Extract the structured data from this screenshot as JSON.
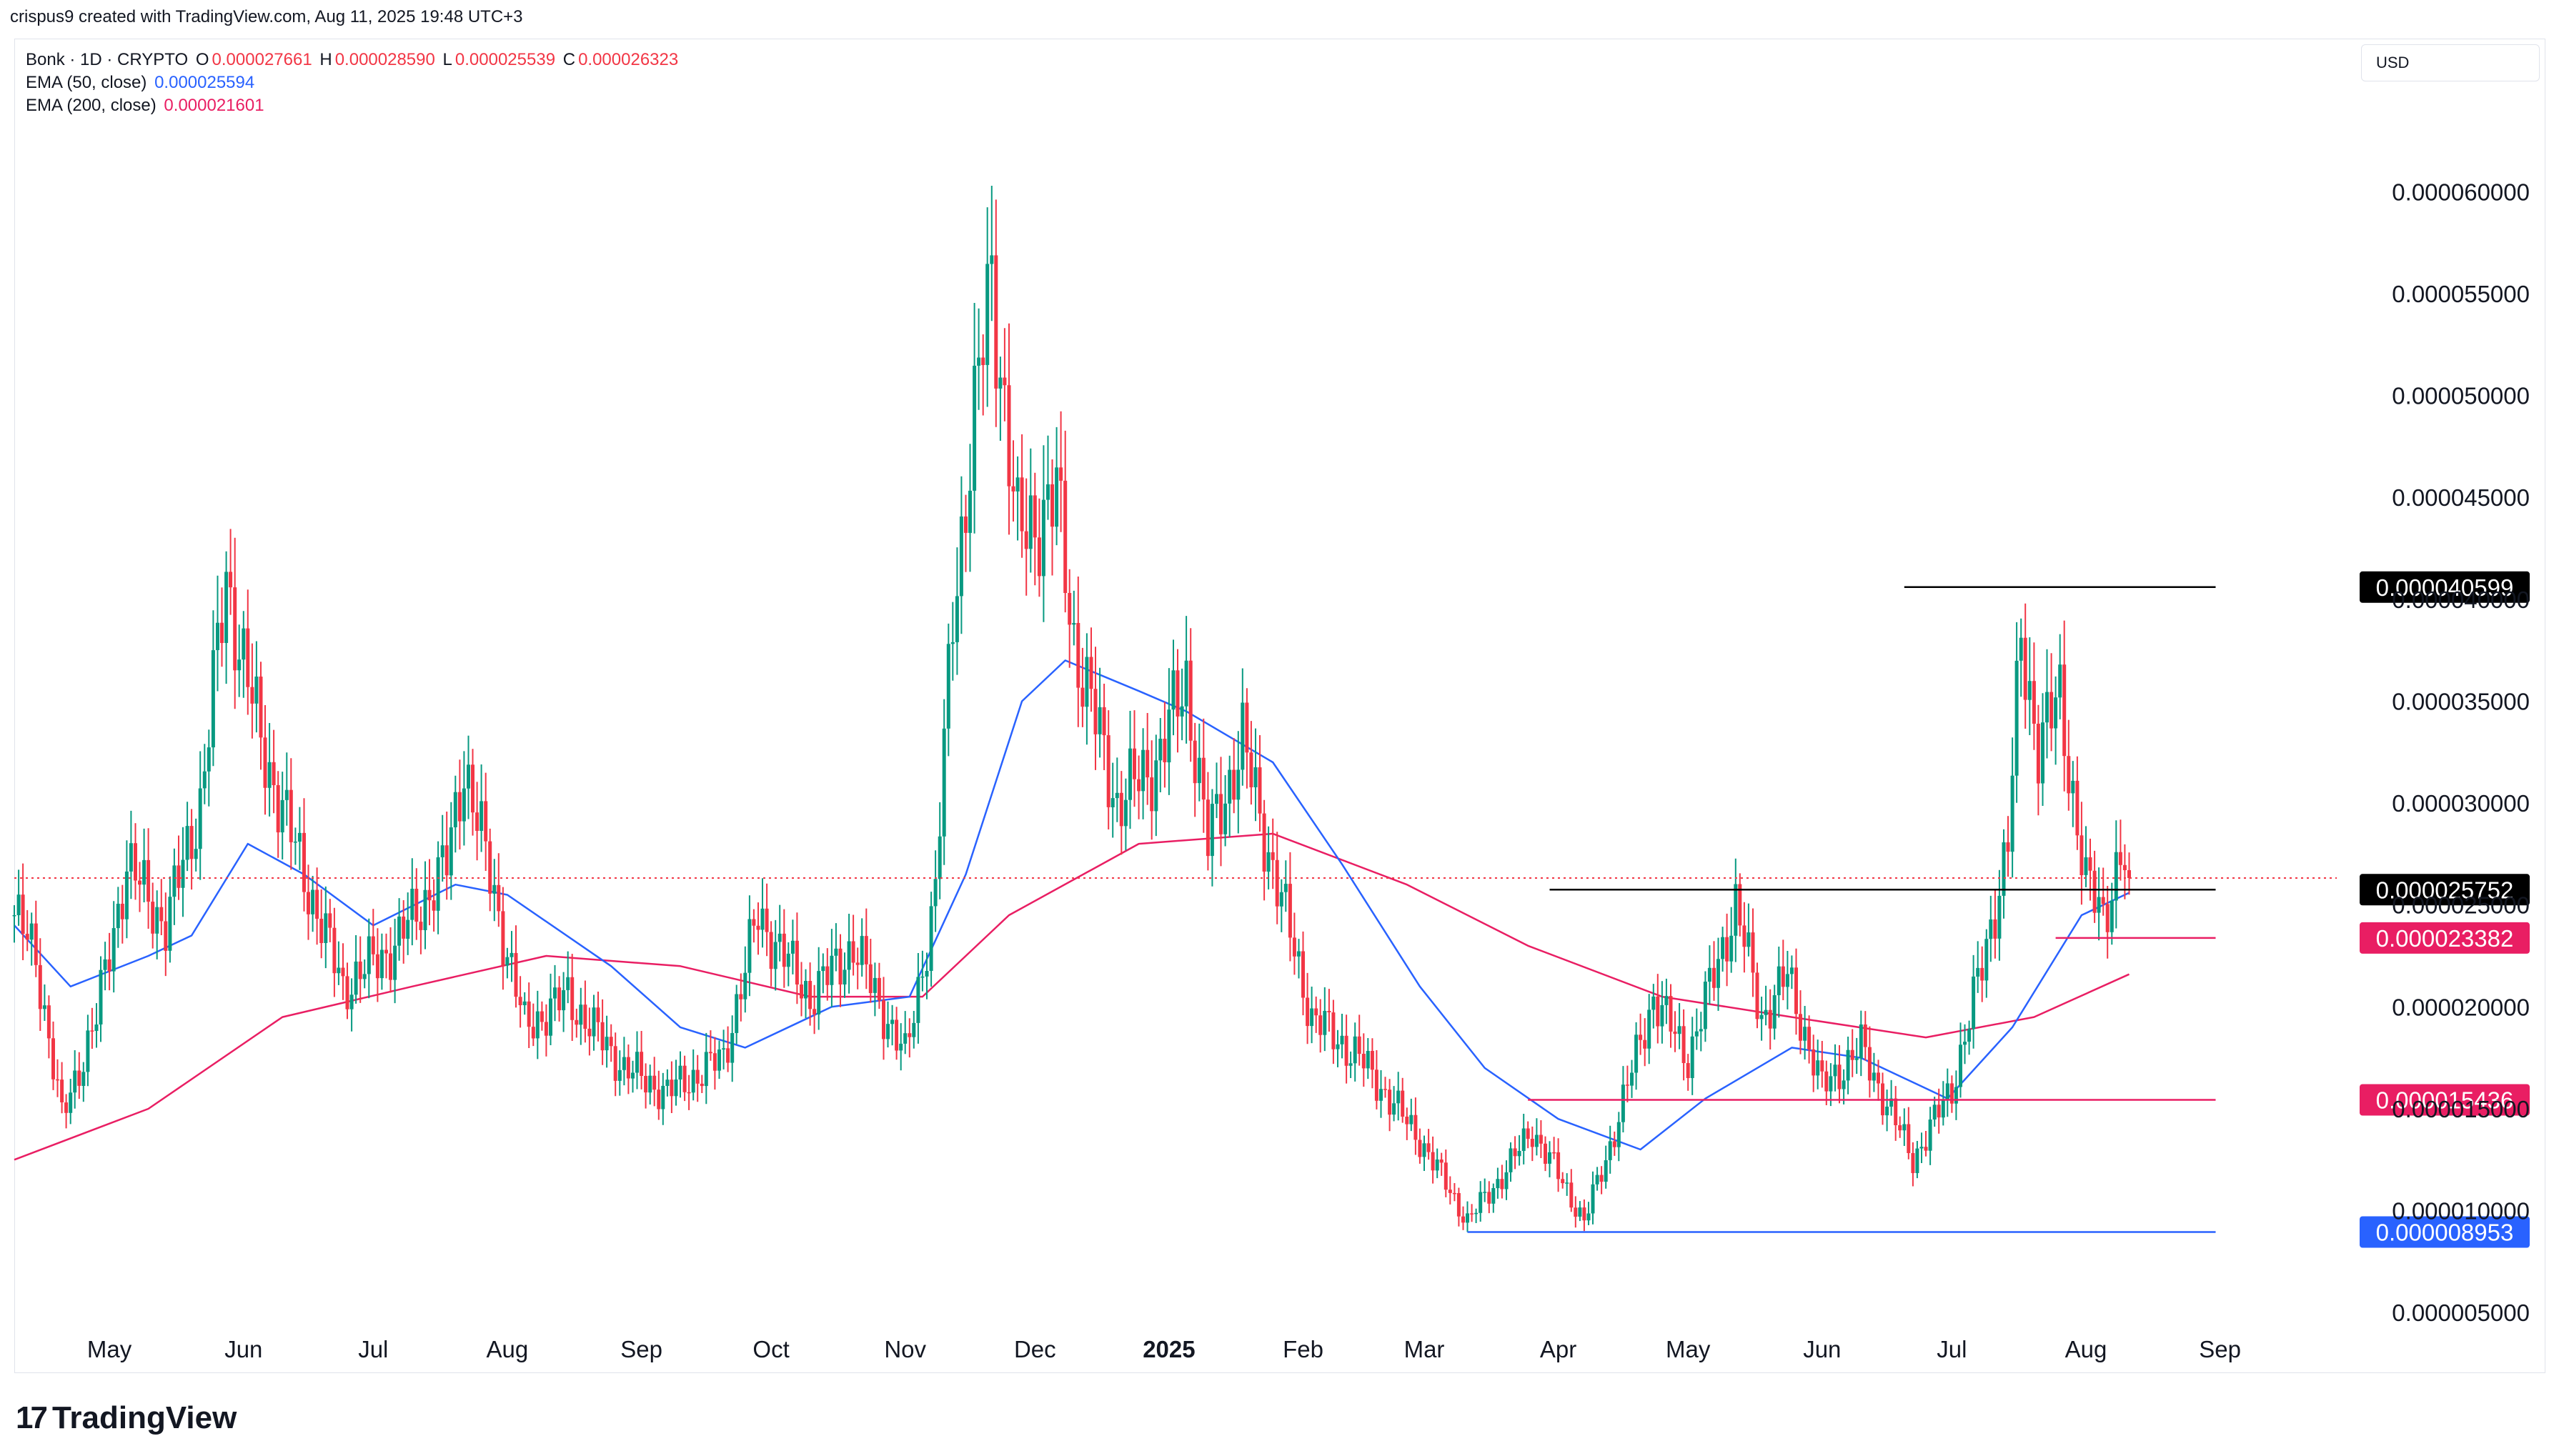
{
  "header": {
    "creator_line": "crispus9 created with TradingView.com, Aug 11, 2025 19:48 UTC+3"
  },
  "legend": {
    "symbol": "Bonk · 1D · CRYPTO",
    "ohlc": {
      "o_label": "O",
      "o": "0.000027661",
      "h_label": "H",
      "h": "0.000028590",
      "l_label": "L",
      "l": "0.000025539",
      "c_label": "C",
      "c": "0.000026323"
    },
    "ema50_label": "EMA (50, close)",
    "ema50_value": "0.000025594",
    "ema200_label": "EMA (200, close)",
    "ema200_value": "0.000021601"
  },
  "currency": "USD",
  "brand": "TradingView",
  "colors": {
    "up": "#089981",
    "down": "#f23645",
    "ema50": "#2962ff",
    "ema200": "#e91e63",
    "resistance": "#000000",
    "support_pink": "#e91e63",
    "support_blue": "#2962ff"
  },
  "chart_data": {
    "type": "candlestick",
    "title": "Bonk · 1D · CRYPTO",
    "y_axis": {
      "min": 3.5e-06,
      "max": 6.45e-05,
      "ticks": [
        5e-06,
        1e-05,
        1.5e-05,
        2e-05,
        2.5e-05,
        3e-05,
        3.5e-05,
        4e-05,
        4.5e-05,
        5e-05,
        5.5e-05,
        6e-05
      ],
      "tick_labels": [
        "0.000005000",
        "0.000010000",
        "0.000015000",
        "0.000020000",
        "0.000025000",
        "0.000030000",
        "0.000035000",
        "0.000040000",
        "0.000045000",
        "0.000050000",
        "0.000055000",
        "0.000060000"
      ]
    },
    "x_axis": {
      "months": [
        {
          "label": "May",
          "date": "2024-05-01"
        },
        {
          "label": "Jun",
          "date": "2024-06-01"
        },
        {
          "label": "Jul",
          "date": "2024-07-01"
        },
        {
          "label": "Aug",
          "date": "2024-08-01"
        },
        {
          "label": "Sep",
          "date": "2024-09-01"
        },
        {
          "label": "Oct",
          "date": "2024-10-01"
        },
        {
          "label": "Nov",
          "date": "2024-11-01"
        },
        {
          "label": "Dec",
          "date": "2024-12-01"
        },
        {
          "label": "2025",
          "date": "2025-01-01",
          "bold": true
        },
        {
          "label": "Feb",
          "date": "2025-02-01"
        },
        {
          "label": "Mar",
          "date": "2025-03-01"
        },
        {
          "label": "Apr",
          "date": "2025-04-01"
        },
        {
          "label": "May",
          "date": "2025-05-01"
        },
        {
          "label": "Jun",
          "date": "2025-06-01"
        },
        {
          "label": "Jul",
          "date": "2025-07-01"
        },
        {
          "label": "Aug",
          "date": "2025-08-01"
        },
        {
          "label": "Sep",
          "date": "2025-09-01"
        }
      ]
    },
    "price_path": [
      {
        "date": "2024-04-09",
        "close": 2.45e-05
      },
      {
        "date": "2024-04-14",
        "close": 2.25e-05
      },
      {
        "date": "2024-04-20",
        "close": 1.45e-05
      },
      {
        "date": "2024-04-28",
        "close": 1.95e-05
      },
      {
        "date": "2024-05-05",
        "close": 2.7e-05
      },
      {
        "date": "2024-05-14",
        "close": 2.4e-05
      },
      {
        "date": "2024-05-22",
        "close": 3e-05
      },
      {
        "date": "2024-05-28",
        "close": 4.1e-05
      },
      {
        "date": "2024-06-05",
        "close": 3.3e-05
      },
      {
        "date": "2024-06-15",
        "close": 2.65e-05
      },
      {
        "date": "2024-06-24",
        "close": 2.1e-05
      },
      {
        "date": "2024-07-06",
        "close": 2.3e-05
      },
      {
        "date": "2024-07-18",
        "close": 2.7e-05
      },
      {
        "date": "2024-07-22",
        "close": 3.2e-05
      },
      {
        "date": "2024-08-05",
        "close": 1.9e-05
      },
      {
        "date": "2024-08-15",
        "close": 2.05e-05
      },
      {
        "date": "2024-08-28",
        "close": 1.7e-05
      },
      {
        "date": "2024-09-07",
        "close": 1.58e-05
      },
      {
        "date": "2024-09-20",
        "close": 1.75e-05
      },
      {
        "date": "2024-09-28",
        "close": 2.45e-05
      },
      {
        "date": "2024-10-10",
        "close": 2.05e-05
      },
      {
        "date": "2024-10-20",
        "close": 2.3e-05
      },
      {
        "date": "2024-11-01",
        "close": 1.75e-05
      },
      {
        "date": "2024-11-08",
        "close": 2.55e-05
      },
      {
        "date": "2024-11-12",
        "close": 3.95e-05
      },
      {
        "date": "2024-11-19",
        "close": 5.25e-05
      },
      {
        "date": "2024-11-21",
        "close": 5.6e-05
      },
      {
        "date": "2024-11-27",
        "close": 4.3e-05
      },
      {
        "date": "2024-12-06",
        "close": 4.5e-05
      },
      {
        "date": "2024-12-10",
        "close": 3.8e-05
      },
      {
        "date": "2024-12-20",
        "close": 3e-05
      },
      {
        "date": "2024-12-29",
        "close": 3.2e-05
      },
      {
        "date": "2025-01-05",
        "close": 3.6e-05
      },
      {
        "date": "2025-01-10",
        "close": 2.8e-05
      },
      {
        "date": "2025-01-18",
        "close": 3.3e-05
      },
      {
        "date": "2025-01-23",
        "close": 2.85e-05
      },
      {
        "date": "2025-02-03",
        "close": 1.95e-05
      },
      {
        "date": "2025-02-14",
        "close": 1.75e-05
      },
      {
        "date": "2025-02-28",
        "close": 1.35e-05
      },
      {
        "date": "2025-03-11",
        "close": 9.5e-06
      },
      {
        "date": "2025-03-20",
        "close": 1.2e-05
      },
      {
        "date": "2025-03-26",
        "close": 1.4e-05
      },
      {
        "date": "2025-04-07",
        "close": 9.5e-06
      },
      {
        "date": "2025-04-12",
        "close": 1.25e-05
      },
      {
        "date": "2025-04-23",
        "close": 2.05e-05
      },
      {
        "date": "2025-05-01",
        "close": 1.75e-05
      },
      {
        "date": "2025-05-12",
        "close": 2.5e-05
      },
      {
        "date": "2025-05-18",
        "close": 1.95e-05
      },
      {
        "date": "2025-05-24",
        "close": 2.15e-05
      },
      {
        "date": "2025-06-01",
        "close": 1.6e-05
      },
      {
        "date": "2025-06-10",
        "close": 1.8e-05
      },
      {
        "date": "2025-06-22",
        "close": 1.25e-05
      },
      {
        "date": "2025-07-01",
        "close": 1.6e-05
      },
      {
        "date": "2025-07-08",
        "close": 2.2e-05
      },
      {
        "date": "2025-07-14",
        "close": 2.8e-05
      },
      {
        "date": "2025-07-17",
        "close": 3.8e-05
      },
      {
        "date": "2025-07-21",
        "close": 3.3e-05
      },
      {
        "date": "2025-07-26",
        "close": 3.5e-05
      },
      {
        "date": "2025-08-01",
        "close": 2.6e-05
      },
      {
        "date": "2025-08-05",
        "close": 2.45e-05
      },
      {
        "date": "2025-08-09",
        "close": 2.75e-05
      },
      {
        "date": "2025-08-11",
        "close": 2.63e-05
      }
    ],
    "ema50_path": [
      {
        "date": "2024-04-09",
        "value": 2.4e-05
      },
      {
        "date": "2024-04-22",
        "value": 2.1e-05
      },
      {
        "date": "2024-05-10",
        "value": 2.25e-05
      },
      {
        "date": "2024-05-20",
        "value": 2.35e-05
      },
      {
        "date": "2024-06-02",
        "value": 2.8e-05
      },
      {
        "date": "2024-06-15",
        "value": 2.65e-05
      },
      {
        "date": "2024-07-01",
        "value": 2.4e-05
      },
      {
        "date": "2024-07-20",
        "value": 2.6e-05
      },
      {
        "date": "2024-08-01",
        "value": 2.55e-05
      },
      {
        "date": "2024-08-25",
        "value": 2.2e-05
      },
      {
        "date": "2024-09-10",
        "value": 1.9e-05
      },
      {
        "date": "2024-09-25",
        "value": 1.8e-05
      },
      {
        "date": "2024-10-15",
        "value": 2e-05
      },
      {
        "date": "2024-11-02",
        "value": 2.05e-05
      },
      {
        "date": "2024-11-15",
        "value": 2.65e-05
      },
      {
        "date": "2024-11-28",
        "value": 3.5e-05
      },
      {
        "date": "2024-12-08",
        "value": 3.7e-05
      },
      {
        "date": "2024-12-25",
        "value": 3.55e-05
      },
      {
        "date": "2025-01-05",
        "value": 3.45e-05
      },
      {
        "date": "2025-01-25",
        "value": 3.2e-05
      },
      {
        "date": "2025-02-10",
        "value": 2.7e-05
      },
      {
        "date": "2025-02-28",
        "value": 2.1e-05
      },
      {
        "date": "2025-03-15",
        "value": 1.7e-05
      },
      {
        "date": "2025-04-01",
        "value": 1.45e-05
      },
      {
        "date": "2025-04-20",
        "value": 1.3e-05
      },
      {
        "date": "2025-05-05",
        "value": 1.55e-05
      },
      {
        "date": "2025-05-25",
        "value": 1.8e-05
      },
      {
        "date": "2025-06-10",
        "value": 1.75e-05
      },
      {
        "date": "2025-06-30",
        "value": 1.55e-05
      },
      {
        "date": "2025-07-15",
        "value": 1.9e-05
      },
      {
        "date": "2025-07-31",
        "value": 2.45e-05
      },
      {
        "date": "2025-08-11",
        "value": 2.56e-05
      }
    ],
    "ema200_path": [
      {
        "date": "2024-04-09",
        "value": 1.25e-05
      },
      {
        "date": "2024-05-10",
        "value": 1.5e-05
      },
      {
        "date": "2024-06-10",
        "value": 1.95e-05
      },
      {
        "date": "2024-07-10",
        "value": 2.1e-05
      },
      {
        "date": "2024-08-10",
        "value": 2.25e-05
      },
      {
        "date": "2024-09-10",
        "value": 2.2e-05
      },
      {
        "date": "2024-10-10",
        "value": 2.05e-05
      },
      {
        "date": "2024-11-05",
        "value": 2.05e-05
      },
      {
        "date": "2024-11-25",
        "value": 2.45e-05
      },
      {
        "date": "2024-12-25",
        "value": 2.8e-05
      },
      {
        "date": "2025-01-25",
        "value": 2.85e-05
      },
      {
        "date": "2025-02-25",
        "value": 2.6e-05
      },
      {
        "date": "2025-03-25",
        "value": 2.3e-05
      },
      {
        "date": "2025-04-25",
        "value": 2.05e-05
      },
      {
        "date": "2025-05-25",
        "value": 1.95e-05
      },
      {
        "date": "2025-06-25",
        "value": 1.85e-05
      },
      {
        "date": "2025-07-20",
        "value": 1.95e-05
      },
      {
        "date": "2025-08-11",
        "value": 2.16e-05
      }
    ],
    "levels": [
      {
        "value": 4.0599e-05,
        "label": "0.000040599",
        "color": "#000000",
        "start": "2025-06-20",
        "end": "2025-08-31"
      },
      {
        "value": 2.5752e-05,
        "label": "0.000025752",
        "color": "#000000",
        "start": "2025-03-30",
        "end": "2025-08-31"
      },
      {
        "value": 2.3382e-05,
        "label": "0.000023382",
        "color": "#e91e63",
        "start": "2025-07-25",
        "end": "2025-08-31"
      },
      {
        "value": 1.5436e-05,
        "label": "0.000015436",
        "color": "#e91e63",
        "start": "2025-03-25",
        "end": "2025-08-31"
      },
      {
        "value": 8.953e-06,
        "label": "0.000008953",
        "color": "#2962ff",
        "start": "2025-03-11",
        "end": "2025-08-31"
      }
    ],
    "last_price": 2.6323e-05
  }
}
